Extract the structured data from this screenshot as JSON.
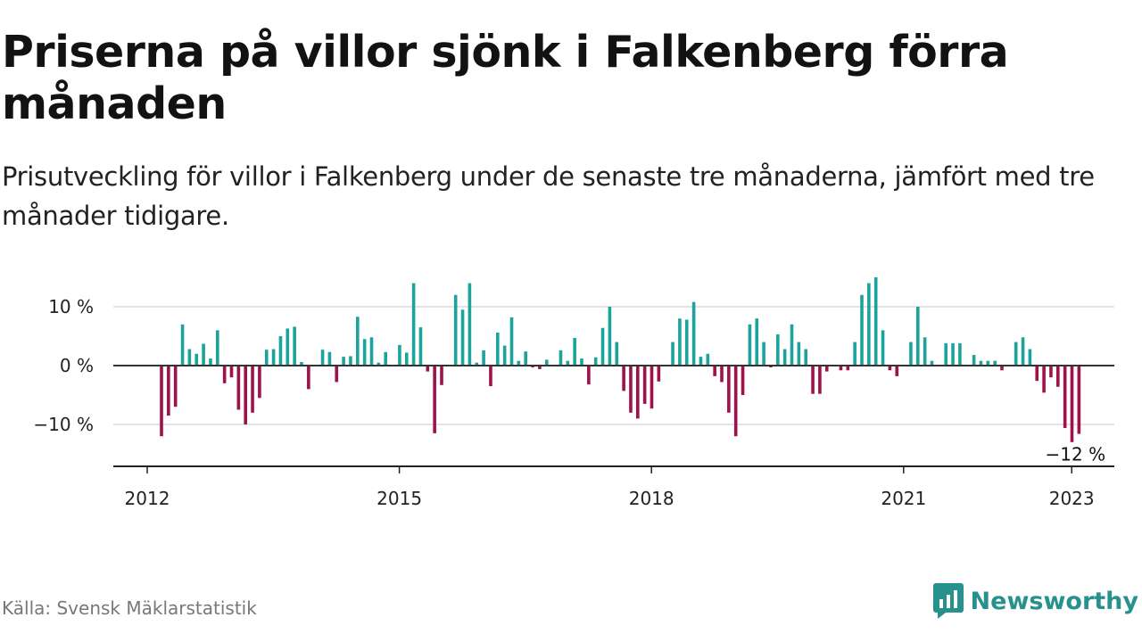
{
  "title": "Priserna på villor sjönk i Falkenberg förra månaden",
  "subtitle": "Prisutveckling för villor i Falkenberg under de senaste tre månaderna, jämfört med tre månader tidigare.",
  "source": "Källa: Svensk Mäklarstatistik",
  "brand": "Newsworthy",
  "colors": {
    "positive": "#1ba39c",
    "negative": "#a0104a",
    "brand": "#27918d"
  },
  "chart_data": {
    "type": "bar",
    "title": "",
    "xlabel": "",
    "ylabel": "",
    "ylim": [
      -17,
      15
    ],
    "grid": true,
    "y_ticks": [
      {
        "value": 10,
        "label": "10 %"
      },
      {
        "value": 0,
        "label": "0 %"
      },
      {
        "value": -10,
        "label": "−10 %"
      }
    ],
    "x_ticks": [
      {
        "value": 2012,
        "label": "2012"
      },
      {
        "value": 2015,
        "label": "2015"
      },
      {
        "value": 2018,
        "label": "2018"
      },
      {
        "value": 2021,
        "label": "2021"
      },
      {
        "value": 2023,
        "label": "2023"
      }
    ],
    "start_month": "2012-01",
    "values": [
      -12,
      -8.5,
      -7,
      7,
      2.8,
      2,
      3.7,
      1.2,
      6,
      -3,
      -2,
      -7.5,
      -10,
      -8,
      -5.5,
      2.7,
      2.8,
      5,
      6.3,
      6.6,
      0.6,
      -4,
      0,
      2.7,
      2.3,
      -2.8,
      1.5,
      1.6,
      8.3,
      4.5,
      4.8,
      0.5,
      2.3,
      0,
      3.5,
      2.2,
      14,
      6.5,
      -1,
      -11.5,
      -3.3,
      0,
      12,
      9.5,
      14,
      0.5,
      2.6,
      -3.5,
      5.6,
      3.4,
      8.2,
      0.8,
      2.4,
      -0.3,
      -0.6,
      1,
      0,
      2.6,
      0.8,
      4.7,
      1.2,
      -3.2,
      1.4,
      6.4,
      10,
      4,
      -4.3,
      -8,
      -9,
      -6.5,
      -7.3,
      -2.7,
      0,
      4,
      8,
      7.8,
      10.8,
      1.5,
      2,
      -1.8,
      -2.8,
      -8,
      -12,
      -5,
      7,
      8,
      4,
      -0.3,
      5.3,
      2.8,
      7,
      4,
      2.8,
      -4.8,
      -4.8,
      -1,
      0,
      -0.8,
      -0.8,
      4,
      12,
      14,
      15,
      6,
      -0.8,
      -1.8,
      0,
      4,
      10,
      4.8,
      0.8,
      0,
      3.8,
      3.8,
      3.8,
      0,
      1.8,
      0.8,
      0.8,
      0.8,
      -0.8,
      0,
      4,
      4.8,
      2.8,
      -2.6,
      -4.6,
      -2,
      -3.6,
      -10.6,
      -13,
      -11.6
    ],
    "annotations": [
      {
        "label": "−12 %",
        "target": "last"
      }
    ]
  }
}
